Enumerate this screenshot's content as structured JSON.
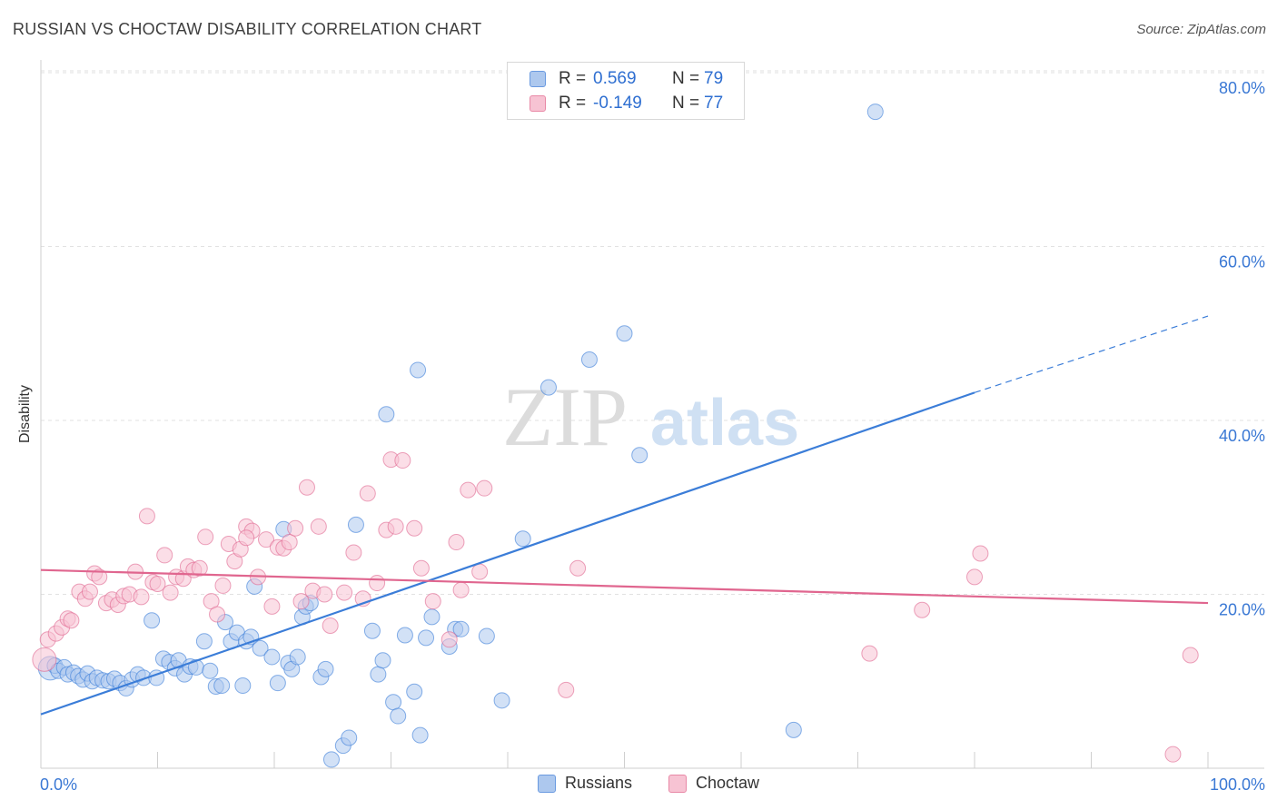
{
  "title": "RUSSIAN VS CHOCTAW DISABILITY CORRELATION CHART",
  "source": "Source: ZipAtlas.com",
  "watermark": {
    "zip": "ZIP",
    "atlas": "atlas"
  },
  "legend": {
    "r_label": "R =",
    "n_label": "N =",
    "rows": [
      {
        "r": "0.569",
        "n": "79",
        "fill": "#adc8ee",
        "stroke": "#6a9ae0"
      },
      {
        "r": "-0.149",
        "n": "77",
        "fill": "#f7c3d3",
        "stroke": "#e888a6"
      }
    ]
  },
  "bottom_legend": [
    {
      "label": "Russians",
      "fill": "#adc8ee",
      "stroke": "#6a9ae0"
    },
    {
      "label": "Choctaw",
      "fill": "#f7c3d3",
      "stroke": "#e888a6"
    }
  ],
  "chart_data": {
    "type": "scatter",
    "title": "RUSSIAN VS CHOCTAW DISABILITY CORRELATION CHART",
    "xlabel": "",
    "ylabel": "Disability",
    "xlim": [
      0,
      100
    ],
    "ylim": [
      0,
      80
    ],
    "x_tick_labels": [
      "0.0%",
      "100.0%"
    ],
    "y_tick_labels": [
      "20.0%",
      "40.0%",
      "60.0%",
      "80.0%"
    ],
    "y_ticks": [
      20,
      40,
      60,
      80
    ],
    "grid": true,
    "legend_position": "top-center",
    "series": [
      {
        "name": "Russians",
        "color": "#3b7dd8",
        "fill": "#adc8ee",
        "trend": {
          "x": [
            0,
            80
          ],
          "y": [
            6.2,
            43.2
          ],
          "dashed_to": [
            100,
            52
          ]
        },
        "points": [
          [
            0.8,
            11.5
          ],
          [
            1.2,
            11.8
          ],
          [
            1.5,
            11.2
          ],
          [
            2.0,
            11.6
          ],
          [
            2.3,
            10.8
          ],
          [
            2.8,
            11.0
          ],
          [
            3.2,
            10.6
          ],
          [
            3.6,
            10.2
          ],
          [
            4.0,
            10.9
          ],
          [
            4.4,
            10.0
          ],
          [
            4.8,
            10.4
          ],
          [
            5.3,
            10.1
          ],
          [
            5.8,
            10.0
          ],
          [
            6.3,
            10.3
          ],
          [
            6.8,
            9.8
          ],
          [
            7.3,
            9.2
          ],
          [
            7.8,
            10.2
          ],
          [
            8.3,
            10.8
          ],
          [
            8.8,
            10.4
          ],
          [
            9.5,
            17.0
          ],
          [
            9.9,
            10.4
          ],
          [
            10.5,
            12.6
          ],
          [
            11.0,
            12.2
          ],
          [
            11.5,
            11.5
          ],
          [
            11.8,
            12.4
          ],
          [
            12.3,
            10.8
          ],
          [
            12.8,
            11.7
          ],
          [
            13.3,
            11.6
          ],
          [
            14.0,
            14.6
          ],
          [
            14.5,
            11.2
          ],
          [
            15.0,
            9.4
          ],
          [
            15.5,
            9.5
          ],
          [
            15.8,
            16.8
          ],
          [
            16.3,
            14.6
          ],
          [
            16.8,
            15.6
          ],
          [
            17.3,
            9.5
          ],
          [
            17.6,
            14.6
          ],
          [
            18.0,
            15.1
          ],
          [
            18.3,
            20.9
          ],
          [
            18.8,
            13.8
          ],
          [
            19.8,
            12.8
          ],
          [
            20.3,
            9.8
          ],
          [
            20.8,
            27.5
          ],
          [
            21.2,
            12.1
          ],
          [
            21.5,
            11.4
          ],
          [
            22.0,
            12.8
          ],
          [
            22.4,
            17.4
          ],
          [
            22.7,
            18.6
          ],
          [
            23.1,
            19.0
          ],
          [
            24.0,
            10.5
          ],
          [
            24.4,
            11.4
          ],
          [
            24.9,
            1.0
          ],
          [
            25.9,
            2.6
          ],
          [
            26.4,
            3.5
          ],
          [
            27.0,
            28.0
          ],
          [
            28.4,
            15.8
          ],
          [
            28.9,
            10.8
          ],
          [
            29.3,
            12.4
          ],
          [
            29.6,
            40.7
          ],
          [
            30.2,
            7.6
          ],
          [
            30.6,
            6.0
          ],
          [
            31.2,
            15.3
          ],
          [
            32.0,
            8.8
          ],
          [
            32.3,
            45.8
          ],
          [
            32.5,
            3.8
          ],
          [
            33.5,
            17.4
          ],
          [
            35.0,
            14.0
          ],
          [
            35.5,
            16.0
          ],
          [
            38.2,
            15.2
          ],
          [
            39.5,
            7.8
          ],
          [
            41.3,
            26.4
          ],
          [
            43.5,
            43.8
          ],
          [
            47.0,
            47.0
          ],
          [
            50.0,
            50.0
          ],
          [
            51.3,
            36.0
          ],
          [
            64.5,
            4.4
          ],
          [
            71.5,
            75.5
          ],
          [
            36.0,
            16.0
          ],
          [
            33.0,
            15.0
          ]
        ]
      },
      {
        "name": "Choctaw",
        "color": "#e0668f",
        "fill": "#f7c3d3",
        "trend": {
          "x": [
            0,
            100
          ],
          "y": [
            22.8,
            19.0
          ]
        },
        "points": [
          [
            0.3,
            12.5
          ],
          [
            0.6,
            14.8
          ],
          [
            1.3,
            15.5
          ],
          [
            1.8,
            16.2
          ],
          [
            2.3,
            17.2
          ],
          [
            2.6,
            17.0
          ],
          [
            3.3,
            20.3
          ],
          [
            3.8,
            19.5
          ],
          [
            4.2,
            20.3
          ],
          [
            4.6,
            22.4
          ],
          [
            5.0,
            22.0
          ],
          [
            5.6,
            19.0
          ],
          [
            6.1,
            19.4
          ],
          [
            6.6,
            18.8
          ],
          [
            7.1,
            19.8
          ],
          [
            7.6,
            20.0
          ],
          [
            8.1,
            22.6
          ],
          [
            8.6,
            19.7
          ],
          [
            9.1,
            29.0
          ],
          [
            9.6,
            21.4
          ],
          [
            10.0,
            21.2
          ],
          [
            10.6,
            24.5
          ],
          [
            11.1,
            20.2
          ],
          [
            11.6,
            22.0
          ],
          [
            12.2,
            21.8
          ],
          [
            12.6,
            23.2
          ],
          [
            13.1,
            22.8
          ],
          [
            13.6,
            23.0
          ],
          [
            14.1,
            26.6
          ],
          [
            14.6,
            19.2
          ],
          [
            15.1,
            17.7
          ],
          [
            15.6,
            21.0
          ],
          [
            16.1,
            25.8
          ],
          [
            16.6,
            23.8
          ],
          [
            17.1,
            25.2
          ],
          [
            17.6,
            27.8
          ],
          [
            18.1,
            27.3
          ],
          [
            18.6,
            22.0
          ],
          [
            19.3,
            26.3
          ],
          [
            19.8,
            18.6
          ],
          [
            20.3,
            25.4
          ],
          [
            20.8,
            25.3
          ],
          [
            21.3,
            26.0
          ],
          [
            21.8,
            27.6
          ],
          [
            22.3,
            19.2
          ],
          [
            22.8,
            32.3
          ],
          [
            23.3,
            20.4
          ],
          [
            23.8,
            27.8
          ],
          [
            24.3,
            20.0
          ],
          [
            24.8,
            16.4
          ],
          [
            26.0,
            20.2
          ],
          [
            26.8,
            24.8
          ],
          [
            27.6,
            19.5
          ],
          [
            28.0,
            31.6
          ],
          [
            28.8,
            21.3
          ],
          [
            29.6,
            27.4
          ],
          [
            30.0,
            35.5
          ],
          [
            30.4,
            27.8
          ],
          [
            31.0,
            35.4
          ],
          [
            32.0,
            27.6
          ],
          [
            32.6,
            23.0
          ],
          [
            33.6,
            19.2
          ],
          [
            35.0,
            14.8
          ],
          [
            35.6,
            26.0
          ],
          [
            36.0,
            20.5
          ],
          [
            36.6,
            32.0
          ],
          [
            37.6,
            22.6
          ],
          [
            38.0,
            32.2
          ],
          [
            45.0,
            9.0
          ],
          [
            46.0,
            23.0
          ],
          [
            71.0,
            13.2
          ],
          [
            75.5,
            18.2
          ],
          [
            80.0,
            22.0
          ],
          [
            80.5,
            24.7
          ],
          [
            98.5,
            13.0
          ],
          [
            97.0,
            1.6
          ],
          [
            17.6,
            26.5
          ]
        ]
      }
    ]
  }
}
